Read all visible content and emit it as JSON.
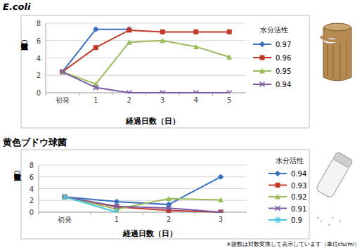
{
  "chart_data": [
    {
      "type": "line",
      "title": "E.coli",
      "y_label": "菌数（対数）",
      "x_label": "経過日数（日）",
      "legend_title": "水分活性",
      "categories": [
        "初発",
        "1",
        "2",
        "3",
        "4",
        "5"
      ],
      "ylim": [
        0,
        8
      ],
      "yticks": [
        0,
        2,
        4,
        6,
        8
      ],
      "grid": true,
      "legend": "right",
      "series": [
        {
          "name": "0.97",
          "color": "#3a6fc2",
          "marker": "diamond",
          "values": [
            2.4,
            7.3,
            7.3,
            null,
            null,
            null
          ]
        },
        {
          "name": "0.96",
          "color": "#c0392b",
          "marker": "square",
          "values": [
            2.4,
            5.2,
            7.2,
            7.0,
            7.0,
            7.0
          ]
        },
        {
          "name": "0.95",
          "color": "#9bbb59",
          "marker": "triangle",
          "values": [
            2.4,
            1.0,
            5.8,
            6.0,
            5.3,
            4.1
          ]
        },
        {
          "name": "0.94",
          "color": "#7b5aa6",
          "marker": "x",
          "values": [
            2.4,
            0.6,
            0,
            0,
            0,
            0
          ]
        }
      ]
    },
    {
      "type": "line",
      "title": "黄色ブドウ球菌",
      "y_label": "菌数（対数）",
      "x_label": "経過日数（日）",
      "legend_title": "水分活性",
      "annotation": "※菌数は対数変換して表示しています（単位cfu/ml）",
      "categories": [
        "初発",
        "1",
        "2",
        "3"
      ],
      "ylim": [
        0,
        8
      ],
      "yticks": [
        0,
        2,
        4,
        6,
        8
      ],
      "grid": true,
      "legend": "right",
      "series": [
        {
          "name": "0.94",
          "color": "#3a6fc2",
          "marker": "diamond",
          "values": [
            2.6,
            1.8,
            1.3,
            6.0
          ]
        },
        {
          "name": "0.93",
          "color": "#c0392b",
          "marker": "square",
          "values": [
            2.6,
            0.9,
            0.3,
            0
          ]
        },
        {
          "name": "0.92",
          "color": "#9bbb59",
          "marker": "triangle",
          "values": [
            2.6,
            0.5,
            2.3,
            2.1
          ]
        },
        {
          "name": "0.91",
          "color": "#7b5aa6",
          "marker": "x",
          "values": [
            2.6,
            1.0,
            0.7,
            0
          ]
        },
        {
          "name": "0.9",
          "color": "#4bc6df",
          "marker": "asterisk",
          "values": [
            2.6,
            0,
            null,
            null
          ]
        }
      ]
    }
  ]
}
